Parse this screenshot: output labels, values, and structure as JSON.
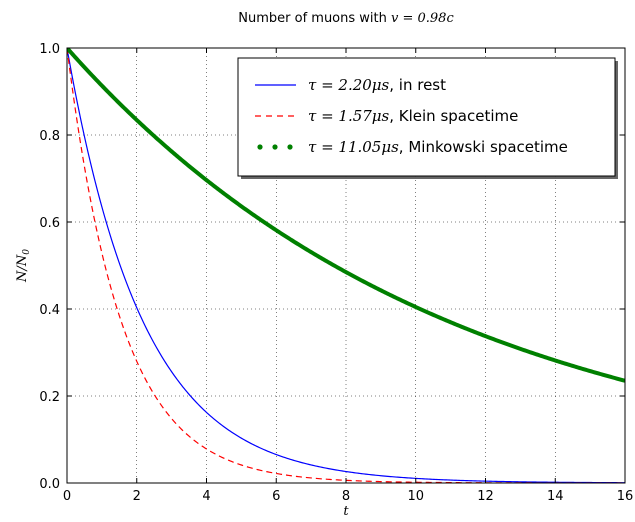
{
  "chart_data": {
    "type": "line",
    "title": {
      "prefix": "Number of muons with ",
      "math": "v = 0.98c"
    },
    "xlabel": "t",
    "ylabel": "N/N",
    "ylabel_sub": "0",
    "xlim": [
      0,
      16
    ],
    "ylim": [
      0.0,
      1.0
    ],
    "xticks": [
      0,
      2,
      4,
      6,
      8,
      10,
      12,
      14,
      16
    ],
    "yticks": [
      0.0,
      0.2,
      0.4,
      0.6,
      0.8,
      1.0
    ],
    "ytick_labels": [
      "0.0",
      "0.2",
      "0.4",
      "0.6",
      "0.8",
      "1.0"
    ],
    "grid": true,
    "legend_position": "top-right",
    "function": "N/N0 = exp(-t/tau)",
    "series": [
      {
        "name_math": "τ = 2.20μs",
        "name_text": ", in rest",
        "tau": 2.2,
        "color": "#0000ff",
        "style": "solid"
      },
      {
        "name_math": "τ = 1.57μs",
        "name_text": ", Klein spacetime",
        "tau": 1.57,
        "color": "#ff0000",
        "style": "dashed"
      },
      {
        "name_math": "τ = 11.05μs",
        "name_text": ", Minkowski spacetime",
        "tau": 11.05,
        "color": "#008000",
        "style": "dotted"
      }
    ]
  }
}
